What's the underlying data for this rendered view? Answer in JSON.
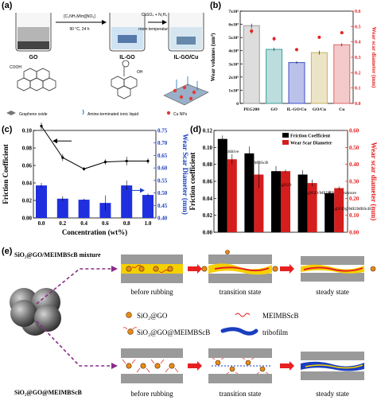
{
  "panels": {
    "a": {
      "label": "(a)",
      "reaction1": "[C₃NH₂MIm][NO₃]",
      "cond1": "90 °C, 24 h",
      "reaction2": "CuSO₄ + N₂H₄",
      "cond2": "room temperature",
      "go": "GO",
      "ilgo": "IL-GO",
      "ilgocu": "IL-GO/Cu",
      "cooh": "COOH",
      "oh": "OH",
      "legend_go": "Graphene oxide",
      "legend_il": "Amine-terminated ionic liquid",
      "legend_cu": "Cu NPs"
    },
    "b": {
      "label": "(b)"
    },
    "c": {
      "label": "(c)"
    },
    "d": {
      "label": "(d)"
    },
    "e": {
      "label": "(e)",
      "mixture": "SiO₂@GO/MEIMBScB mixture",
      "grafted": "SiO₂@GO@MEIMBScB",
      "before": "before rubbing",
      "transition": "transition state",
      "steady": "steady state",
      "leg_sio2go": "SiO₂@GO",
      "leg_meimbscb": "MEIMBScB",
      "leg_grafted": "SiO₂@GO@MEIMBScB",
      "leg_tribofilm": "tribofilm"
    }
  },
  "chart_data": [
    {
      "type": "bar",
      "panel": "b",
      "categories": [
        "PEG200",
        "GO",
        "IL-GO/Cu",
        "GO/Cu",
        "Cu"
      ],
      "series": [
        {
          "values": [
            5.9,
            4.1,
            3.1,
            3.85,
            4.45
          ],
          "errors": [
            0.15,
            0.12,
            0.1,
            0.15,
            0.12
          ],
          "colors": [
            "#9e9e9e",
            "#3c9e9a",
            "#3b4fc4",
            "#c9b15d",
            "#e06464"
          ]
        },
        {
          "values": [
            0.47,
            0.42,
            0.35,
            0.43,
            0.46
          ],
          "errors": [
            0.02,
            0.015,
            0.01,
            0.01,
            0.01
          ],
          "axis": "right"
        }
      ],
      "ylabel": "Wear volumes (um³)",
      "ylabel2": "Wear scar diameter (mm)",
      "ylim": [
        0,
        7
      ],
      "ylim2": [
        0,
        0.6
      ],
      "yticks": [
        "0",
        "1x10⁵",
        "2x10⁵",
        "3x10⁵",
        "4x10⁵",
        "5x10⁵",
        "6x10⁵",
        "7x10⁵"
      ],
      "yticks2": [
        "0.0",
        "0.1",
        "0.2",
        "0.3",
        "0.4",
        "0.5",
        "0.6"
      ]
    },
    {
      "type": "line",
      "panel": "c",
      "x": [
        0.0,
        0.2,
        0.4,
        0.6,
        0.8,
        1.0
      ],
      "xlabel": "Concentration (wt%)",
      "ylabel": "Friction Coefficient",
      "ylabel2": "Wear Scar Diameter (mm)",
      "xlim": [
        0.0,
        1.0
      ],
      "ylim": [
        0.0,
        0.1
      ],
      "ylim2": [
        0.4,
        0.75
      ],
      "xticks": [
        "0.0",
        "0.2",
        "0.4",
        "0.6",
        "0.8",
        "1.0"
      ],
      "yticks": [
        "0.00",
        "0.02",
        "0.04",
        "0.06",
        "0.08",
        "0.10"
      ],
      "yticks2": [
        "0.40",
        "0.45",
        "0.50",
        "0.55",
        "0.60",
        "0.65",
        "0.70",
        "0.75"
      ],
      "series": [
        {
          "kind": "line",
          "axis": "left",
          "values": [
            0.105,
            0.069,
            0.056,
            0.064,
            0.065,
            0.065
          ],
          "errors": [
            0.004,
            0.004,
            0.002,
            0.003,
            0.005,
            0.003
          ]
        },
        {
          "kind": "bar",
          "axis": "right",
          "values": [
            0.53,
            0.477,
            0.473,
            0.46,
            0.53,
            0.492
          ],
          "errors": [
            0.01,
            0.01,
            0.004,
            0.03,
            0.02,
            0.006
          ]
        }
      ]
    },
    {
      "type": "bar",
      "panel": "d",
      "categories": [
        "no additive",
        "MEIMBScB",
        "SiO₂@GO",
        "SiO₂@GO/MEIMBScB mixture",
        "SiO₂@GO@MEIMBScB"
      ],
      "series": [
        {
          "name": "Friction Coefficient",
          "values": [
            0.11,
            0.093,
            0.072,
            0.068,
            0.046
          ],
          "errors": [
            0.004,
            0.008,
            0.006,
            0.005,
            0.003
          ]
        },
        {
          "name": "Wear Scar Diameter",
          "values": [
            0.43,
            0.34,
            0.36,
            0.29,
            0.26
          ],
          "errors": [
            0.03,
            0.08,
            0.01,
            0.02,
            0.01
          ]
        }
      ],
      "ylim": [
        0.0,
        0.12
      ],
      "ylim2": [
        0.0,
        0.6
      ],
      "yticks": [
        "0.00",
        "0.02",
        "0.04",
        "0.06",
        "0.08",
        "0.10",
        "0.12"
      ],
      "yticks2": [
        "0.00",
        "0.10",
        "0.20",
        "0.30",
        "0.40",
        "0.50",
        "0.60"
      ],
      "ylabel": "Friction coefficient",
      "ylabel2": "Wear scar diameter (mm)"
    }
  ]
}
